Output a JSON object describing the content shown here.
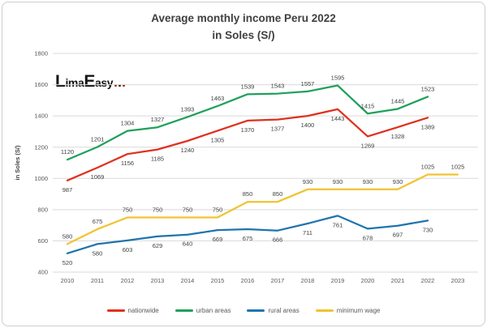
{
  "title": {
    "line1": "Average monthly income Peru 2022",
    "line2": "in Soles (S/)"
  },
  "logo": {
    "part1": "Lima",
    "part2": "Easy",
    "dot_colors": [
      "#b01311",
      "#3a0d0c",
      "#b01311"
    ]
  },
  "chart_data": {
    "type": "line",
    "title": "Average monthly income Peru 2022 in Soles (S/)",
    "xlabel": "",
    "ylabel": "in Soles (S/)",
    "ylim": [
      400,
      1800
    ],
    "ytick_step": 200,
    "grid": true,
    "legend_position": "bottom",
    "x": [
      "2010",
      "2011",
      "2012",
      "2013",
      "2014",
      "2015",
      "2016",
      "2017",
      "2018",
      "2019",
      "2020",
      "2021",
      "2022",
      "2023"
    ],
    "series": [
      {
        "name": "nationwide",
        "color": "#e0301e",
        "label_position": "below",
        "values": [
          987,
          1069,
          1156,
          1185,
          1240,
          1305,
          1370,
          1377,
          1400,
          1443,
          1269,
          1328,
          1389
        ]
      },
      {
        "name": "urban areas",
        "color": "#1fa05a",
        "label_position": "above",
        "values": [
          1120,
          1201,
          1304,
          1327,
          1393,
          1463,
          1539,
          1543,
          1557,
          1595,
          1415,
          1445,
          1523
        ]
      },
      {
        "name": "rural areas",
        "color": "#1f74ad",
        "label_position": "below",
        "values": [
          520,
          580,
          603,
          629,
          640,
          669,
          675,
          666,
          711,
          761,
          678,
          697,
          730
        ]
      },
      {
        "name": "minimum wage",
        "color": "#f0c330",
        "label_position": "above",
        "values": [
          580,
          675,
          750,
          750,
          750,
          750,
          850,
          850,
          930,
          930,
          930,
          930,
          1025,
          1025
        ]
      }
    ],
    "style": {
      "gridline_color": "#d9d9d9",
      "tick_label_color": "#595959",
      "data_label_color": "#404040",
      "title_color": "#404040"
    }
  }
}
